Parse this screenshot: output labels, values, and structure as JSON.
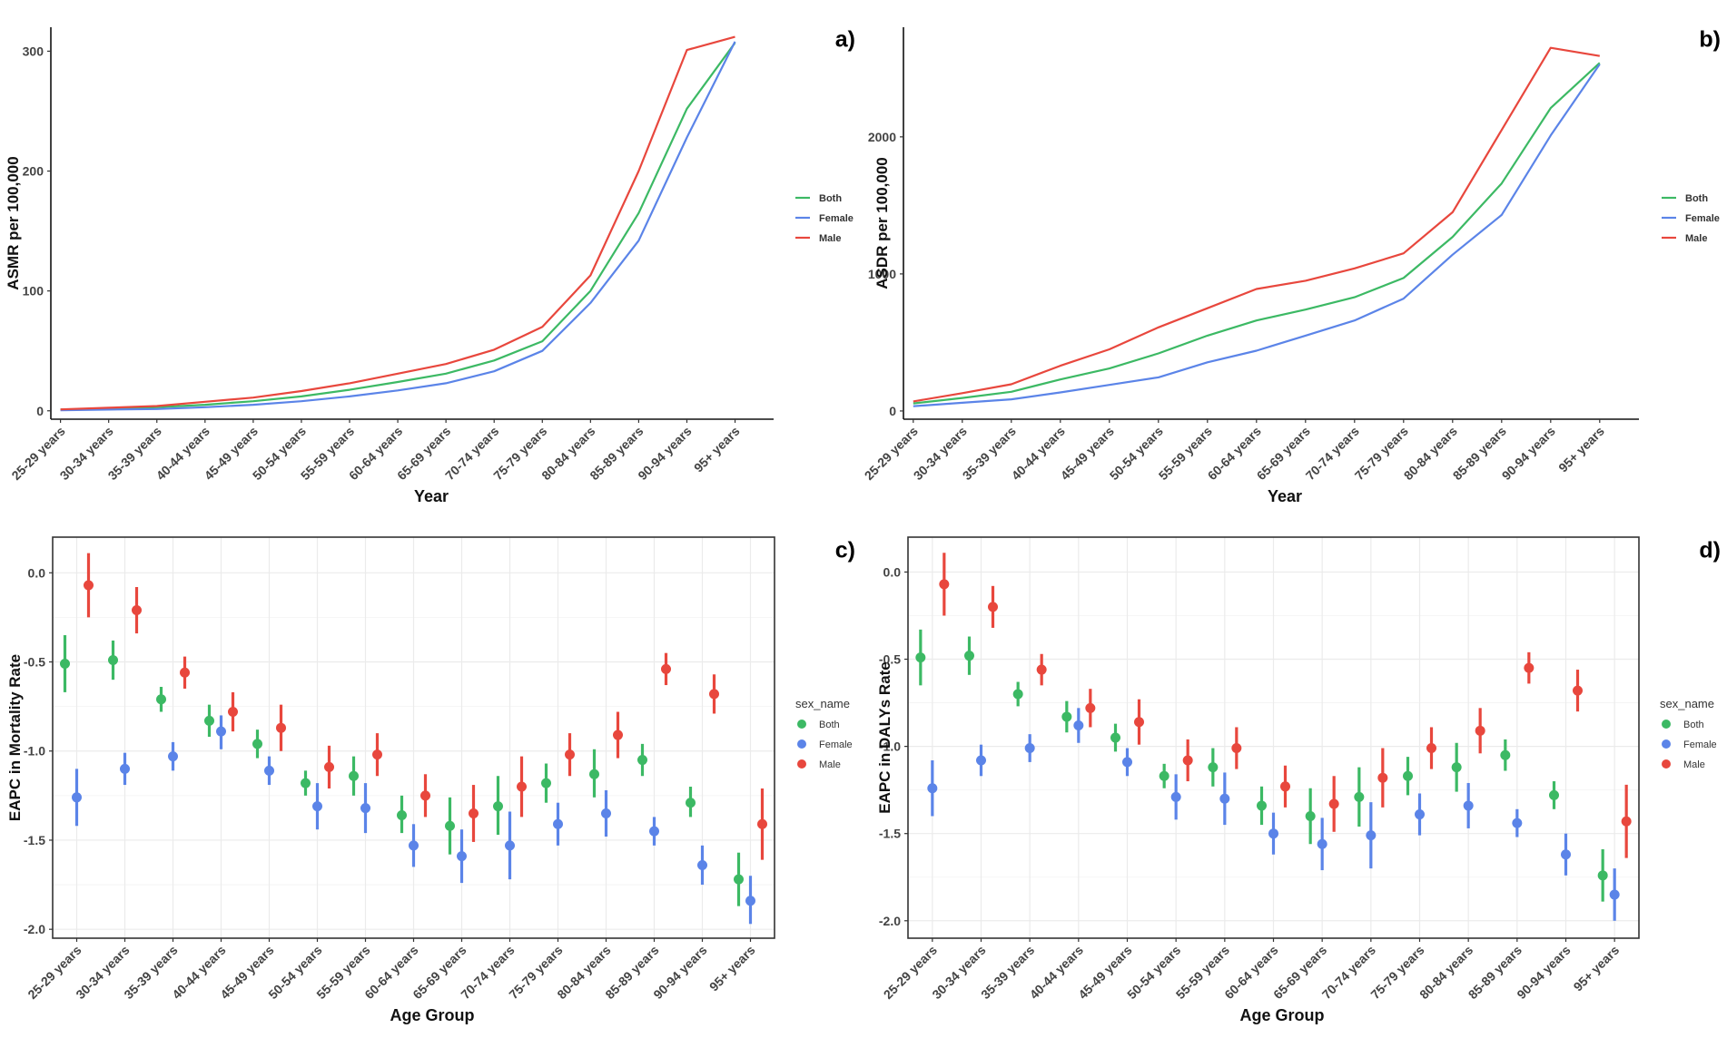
{
  "figure": {
    "age_groups": [
      "25-29 years",
      "30-34 years",
      "35-39 years",
      "40-44 years",
      "45-49 years",
      "50-54 years",
      "55-59 years",
      "60-64 years",
      "65-69 years",
      "70-74 years",
      "75-79 years",
      "80-84 years",
      "85-89 years",
      "90-94 years",
      "95+ years"
    ],
    "colors": {
      "Both": "#3cb964",
      "Female": "#5b84e8",
      "Male": "#e8473d"
    }
  },
  "chart_data": [
    {
      "id": "a",
      "panel_label": "a)",
      "type": "line",
      "xlabel": "Year",
      "ylabel": "ASMR per 100,000",
      "ylim": [
        -7,
        320
      ],
      "yticks": [
        0,
        100,
        200,
        300
      ],
      "grid": false,
      "legend": {
        "position": "right",
        "title": "",
        "entries": [
          "Both",
          "Female",
          "Male"
        ]
      },
      "series": [
        {
          "name": "Both",
          "values": [
            1.0,
            1.8,
            3.0,
            5.0,
            8.0,
            12.0,
            17.5,
            24.0,
            31.0,
            42.0,
            58.0,
            100.0,
            165.0,
            252.0,
            307.0
          ]
        },
        {
          "name": "Female",
          "values": [
            0.5,
            1.0,
            1.5,
            3.0,
            5.0,
            8.0,
            12.0,
            17.0,
            23.0,
            33.0,
            50.0,
            90.0,
            142.0,
            228.0,
            308.0
          ]
        },
        {
          "name": "Male",
          "values": [
            1.2,
            2.5,
            4.0,
            7.5,
            11.0,
            16.5,
            23.0,
            31.0,
            39.0,
            51.0,
            70.0,
            113.0,
            200.0,
            301.0,
            312.0
          ]
        }
      ]
    },
    {
      "id": "b",
      "panel_label": "b)",
      "type": "line",
      "xlabel": "Year",
      "ylabel": "ASDR per 100,000",
      "ylim": [
        -60,
        2800
      ],
      "yticks": [
        0,
        1000,
        2000
      ],
      "grid": false,
      "legend": {
        "position": "right",
        "title": "",
        "entries": [
          "Both",
          "Female",
          "Male"
        ]
      },
      "series": [
        {
          "name": "Both",
          "values": [
            55,
            95,
            140,
            230,
            310,
            420,
            550,
            660,
            740,
            830,
            970,
            1270,
            1660,
            2210,
            2540
          ]
        },
        {
          "name": "Female",
          "values": [
            35,
            60,
            85,
            135,
            190,
            245,
            355,
            440,
            550,
            660,
            820,
            1140,
            1430,
            2010,
            2530
          ]
        },
        {
          "name": "Male",
          "values": [
            70,
            130,
            195,
            330,
            450,
            610,
            750,
            890,
            950,
            1040,
            1150,
            1450,
            2050,
            2650,
            2590
          ]
        }
      ]
    },
    {
      "id": "c",
      "panel_label": "c)",
      "type": "scatter",
      "xlabel": "Age Group",
      "ylabel": "EAPC in Mortality Rate",
      "ylim": [
        -2.05,
        0.2
      ],
      "yticks": [
        0.0,
        -0.5,
        -1.0,
        -1.5,
        -2.0
      ],
      "ytick_labels": [
        "0.0",
        "-0.5",
        "-1.0",
        "-1.5",
        "-2.0"
      ],
      "grid": true,
      "legend": {
        "position": "right",
        "title": "sex_name",
        "entries": [
          "Both",
          "Female",
          "Male"
        ]
      },
      "series": [
        {
          "name": "Both",
          "values": [
            -0.51,
            -0.49,
            -0.71,
            -0.83,
            -0.96,
            -1.18,
            -1.14,
            -1.36,
            -1.42,
            -1.31,
            -1.18,
            -1.13,
            -1.05,
            -1.29,
            -1.72
          ],
          "lower": [
            -0.67,
            -0.6,
            -0.78,
            -0.92,
            -1.04,
            -1.25,
            -1.25,
            -1.46,
            -1.58,
            -1.47,
            -1.29,
            -1.26,
            -1.14,
            -1.37,
            -1.87
          ],
          "upper": [
            -0.35,
            -0.38,
            -0.64,
            -0.74,
            -0.88,
            -1.11,
            -1.03,
            -1.25,
            -1.26,
            -1.14,
            -1.07,
            -0.99,
            -0.96,
            -1.2,
            -1.57
          ]
        },
        {
          "name": "Female",
          "values": [
            -1.26,
            -1.1,
            -1.03,
            -0.89,
            -1.11,
            -1.31,
            -1.32,
            -1.53,
            -1.59,
            -1.53,
            -1.41,
            -1.35,
            -1.45,
            -1.64,
            -1.84
          ],
          "lower": [
            -1.42,
            -1.19,
            -1.11,
            -0.99,
            -1.19,
            -1.44,
            -1.46,
            -1.65,
            -1.74,
            -1.72,
            -1.53,
            -1.48,
            -1.53,
            -1.75,
            -1.97
          ],
          "upper": [
            -1.1,
            -1.01,
            -0.95,
            -0.8,
            -1.03,
            -1.18,
            -1.18,
            -1.41,
            -1.44,
            -1.34,
            -1.29,
            -1.22,
            -1.37,
            -1.53,
            -1.7
          ]
        },
        {
          "name": "Male",
          "values": [
            -0.07,
            -0.21,
            -0.56,
            -0.78,
            -0.87,
            -1.09,
            -1.02,
            -1.25,
            -1.35,
            -1.2,
            -1.02,
            -0.91,
            -0.54,
            -0.68,
            -1.41
          ],
          "lower": [
            -0.25,
            -0.34,
            -0.65,
            -0.89,
            -1.0,
            -1.21,
            -1.14,
            -1.37,
            -1.51,
            -1.37,
            -1.14,
            -1.04,
            -0.63,
            -0.79,
            -1.61
          ],
          "upper": [
            0.11,
            -0.08,
            -0.47,
            -0.67,
            -0.74,
            -0.97,
            -0.9,
            -1.13,
            -1.19,
            -1.03,
            -0.9,
            -0.78,
            -0.45,
            -0.57,
            -1.21
          ]
        }
      ]
    },
    {
      "id": "d",
      "panel_label": "d)",
      "type": "scatter",
      "xlabel": "Age Group",
      "ylabel": "EAPC in DALYs Rate",
      "ylim": [
        -2.1,
        0.2
      ],
      "yticks": [
        0.0,
        -0.5,
        -1.0,
        -1.5,
        -2.0
      ],
      "ytick_labels": [
        "0.0",
        "-0.5",
        "-1.0",
        "-1.5",
        "-2.0"
      ],
      "grid": true,
      "legend": {
        "position": "right",
        "title": "sex_name",
        "entries": [
          "Both",
          "Female",
          "Male"
        ]
      },
      "series": [
        {
          "name": "Both",
          "values": [
            -0.49,
            -0.48,
            -0.7,
            -0.83,
            -0.95,
            -1.17,
            -1.12,
            -1.34,
            -1.4,
            -1.29,
            -1.17,
            -1.12,
            -1.05,
            -1.28,
            -1.74
          ],
          "lower": [
            -0.65,
            -0.59,
            -0.77,
            -0.92,
            -1.03,
            -1.24,
            -1.23,
            -1.45,
            -1.56,
            -1.46,
            -1.28,
            -1.26,
            -1.14,
            -1.36,
            -1.89
          ],
          "upper": [
            -0.33,
            -0.37,
            -0.63,
            -0.74,
            -0.87,
            -1.1,
            -1.01,
            -1.23,
            -1.24,
            -1.12,
            -1.06,
            -0.98,
            -0.96,
            -1.2,
            -1.59
          ]
        },
        {
          "name": "Female",
          "values": [
            -1.24,
            -1.08,
            -1.01,
            -0.88,
            -1.09,
            -1.29,
            -1.3,
            -1.5,
            -1.56,
            -1.51,
            -1.39,
            -1.34,
            -1.44,
            -1.62,
            -1.85
          ],
          "lower": [
            -1.4,
            -1.17,
            -1.09,
            -0.98,
            -1.17,
            -1.42,
            -1.45,
            -1.62,
            -1.71,
            -1.7,
            -1.51,
            -1.47,
            -1.52,
            -1.74,
            -2.0
          ],
          "upper": [
            -1.08,
            -0.99,
            -0.93,
            -0.78,
            -1.01,
            -1.16,
            -1.15,
            -1.38,
            -1.41,
            -1.32,
            -1.27,
            -1.21,
            -1.36,
            -1.5,
            -1.7
          ]
        },
        {
          "name": "Male",
          "values": [
            -0.07,
            -0.2,
            -0.56,
            -0.78,
            -0.86,
            -1.08,
            -1.01,
            -1.23,
            -1.33,
            -1.18,
            -1.01,
            -0.91,
            -0.55,
            -0.68,
            -1.43
          ],
          "lower": [
            -0.25,
            -0.32,
            -0.65,
            -0.89,
            -0.99,
            -1.2,
            -1.13,
            -1.35,
            -1.49,
            -1.35,
            -1.13,
            -1.04,
            -0.64,
            -0.8,
            -1.64
          ],
          "upper": [
            0.11,
            -0.08,
            -0.47,
            -0.67,
            -0.73,
            -0.96,
            -0.89,
            -1.11,
            -1.17,
            -1.01,
            -0.89,
            -0.78,
            -0.46,
            -0.56,
            -1.22
          ]
        }
      ]
    }
  ]
}
